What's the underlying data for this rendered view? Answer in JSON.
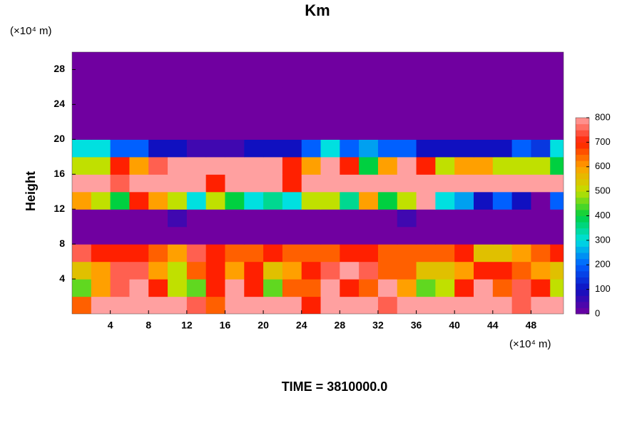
{
  "chart_data": {
    "type": "heatmap",
    "title": "Km",
    "y_unit": "(×10⁴ m)",
    "x_unit": "(×10⁴ m)",
    "ylabel": "Height",
    "footer": "TIME = 3810000.0",
    "xlim": [
      0,
      51.4
    ],
    "ylim": [
      0,
      30
    ],
    "xticks": [
      4,
      8,
      12,
      16,
      20,
      24,
      28,
      32,
      36,
      40,
      44,
      48
    ],
    "yticks": [
      4,
      8,
      12,
      16,
      20,
      24,
      28
    ],
    "clim": [
      0,
      800
    ],
    "cbarticks": [
      0,
      100,
      200,
      300,
      400,
      500,
      600,
      700,
      800
    ],
    "colormap": [
      "#7000a0",
      "#1010c0",
      "#0060ff",
      "#00e0e0",
      "#00d040",
      "#c0e000",
      "#ffa000",
      "#ff2000",
      "#ffa0a0"
    ],
    "x": [
      1,
      3,
      5,
      7,
      9,
      11,
      13,
      15,
      17,
      19,
      21,
      23,
      25,
      27,
      29,
      31,
      33,
      35,
      37,
      39,
      41,
      43,
      45,
      47,
      49,
      51
    ],
    "y": [
      1,
      3,
      5,
      7,
      9,
      11,
      13,
      15,
      17,
      19,
      21,
      23,
      25,
      27,
      29
    ],
    "z": [
      [
        650,
        800,
        800,
        800,
        800,
        800,
        750,
        650,
        800,
        800,
        800,
        800,
        700,
        800,
        800,
        800,
        750,
        800,
        800,
        800,
        800,
        800,
        800,
        750,
        800,
        800
      ],
      [
        450,
        600,
        750,
        800,
        700,
        500,
        450,
        700,
        800,
        700,
        450,
        650,
        650,
        800,
        700,
        650,
        800,
        600,
        450,
        500,
        700,
        800,
        650,
        750,
        700,
        500
      ],
      [
        550,
        600,
        750,
        750,
        600,
        500,
        650,
        700,
        600,
        700,
        550,
        600,
        700,
        750,
        800,
        750,
        650,
        650,
        550,
        550,
        600,
        700,
        700,
        650,
        600,
        550
      ],
      [
        750,
        700,
        700,
        700,
        650,
        600,
        750,
        700,
        650,
        650,
        700,
        650,
        650,
        650,
        700,
        700,
        650,
        650,
        650,
        650,
        700,
        550,
        550,
        600,
        650,
        700
      ],
      [
        0,
        0,
        0,
        0,
        0,
        0,
        0,
        0,
        0,
        0,
        0,
        0,
        0,
        0,
        0,
        0,
        0,
        0,
        0,
        0,
        0,
        0,
        0,
        0,
        0,
        0
      ],
      [
        0,
        0,
        0,
        0,
        0,
        50,
        0,
        0,
        0,
        0,
        0,
        0,
        0,
        0,
        0,
        0,
        0,
        50,
        0,
        0,
        0,
        0,
        0,
        0,
        0,
        0
      ],
      [
        600,
        500,
        400,
        700,
        600,
        500,
        300,
        500,
        400,
        300,
        350,
        300,
        500,
        500,
        350,
        600,
        400,
        500,
        800,
        300,
        250,
        100,
        200,
        100,
        0,
        200
      ],
      [
        800,
        800,
        750,
        800,
        800,
        800,
        800,
        700,
        800,
        800,
        800,
        700,
        800,
        800,
        800,
        800,
        800,
        800,
        800,
        800,
        800,
        800,
        800,
        800,
        800,
        800
      ],
      [
        500,
        500,
        700,
        600,
        750,
        800,
        800,
        800,
        800,
        800,
        800,
        700,
        600,
        800,
        700,
        400,
        600,
        800,
        700,
        500,
        600,
        600,
        500,
        500,
        500,
        400
      ],
      [
        300,
        300,
        200,
        200,
        100,
        100,
        50,
        50,
        50,
        100,
        100,
        100,
        200,
        300,
        200,
        250,
        200,
        200,
        100,
        100,
        100,
        100,
        100,
        200,
        150,
        300
      ],
      [
        0,
        0,
        0,
        0,
        0,
        0,
        0,
        0,
        0,
        0,
        0,
        0,
        0,
        0,
        0,
        0,
        0,
        0,
        0,
        0,
        0,
        0,
        0,
        0,
        0,
        0
      ],
      [
        0,
        0,
        0,
        0,
        0,
        0,
        0,
        0,
        0,
        0,
        0,
        0,
        0,
        0,
        0,
        0,
        0,
        0,
        0,
        0,
        0,
        0,
        0,
        0,
        0,
        0
      ],
      [
        0,
        0,
        0,
        0,
        0,
        0,
        0,
        0,
        0,
        0,
        0,
        0,
        0,
        0,
        0,
        0,
        0,
        0,
        0,
        0,
        0,
        0,
        0,
        0,
        0,
        0
      ],
      [
        0,
        0,
        0,
        0,
        0,
        0,
        0,
        0,
        0,
        0,
        0,
        0,
        0,
        0,
        0,
        0,
        0,
        0,
        0,
        0,
        0,
        0,
        0,
        0,
        0,
        0
      ],
      [
        0,
        0,
        0,
        0,
        0,
        0,
        0,
        0,
        0,
        0,
        0,
        0,
        0,
        0,
        0,
        0,
        0,
        0,
        0,
        0,
        0,
        0,
        0,
        0,
        0,
        0
      ]
    ]
  }
}
